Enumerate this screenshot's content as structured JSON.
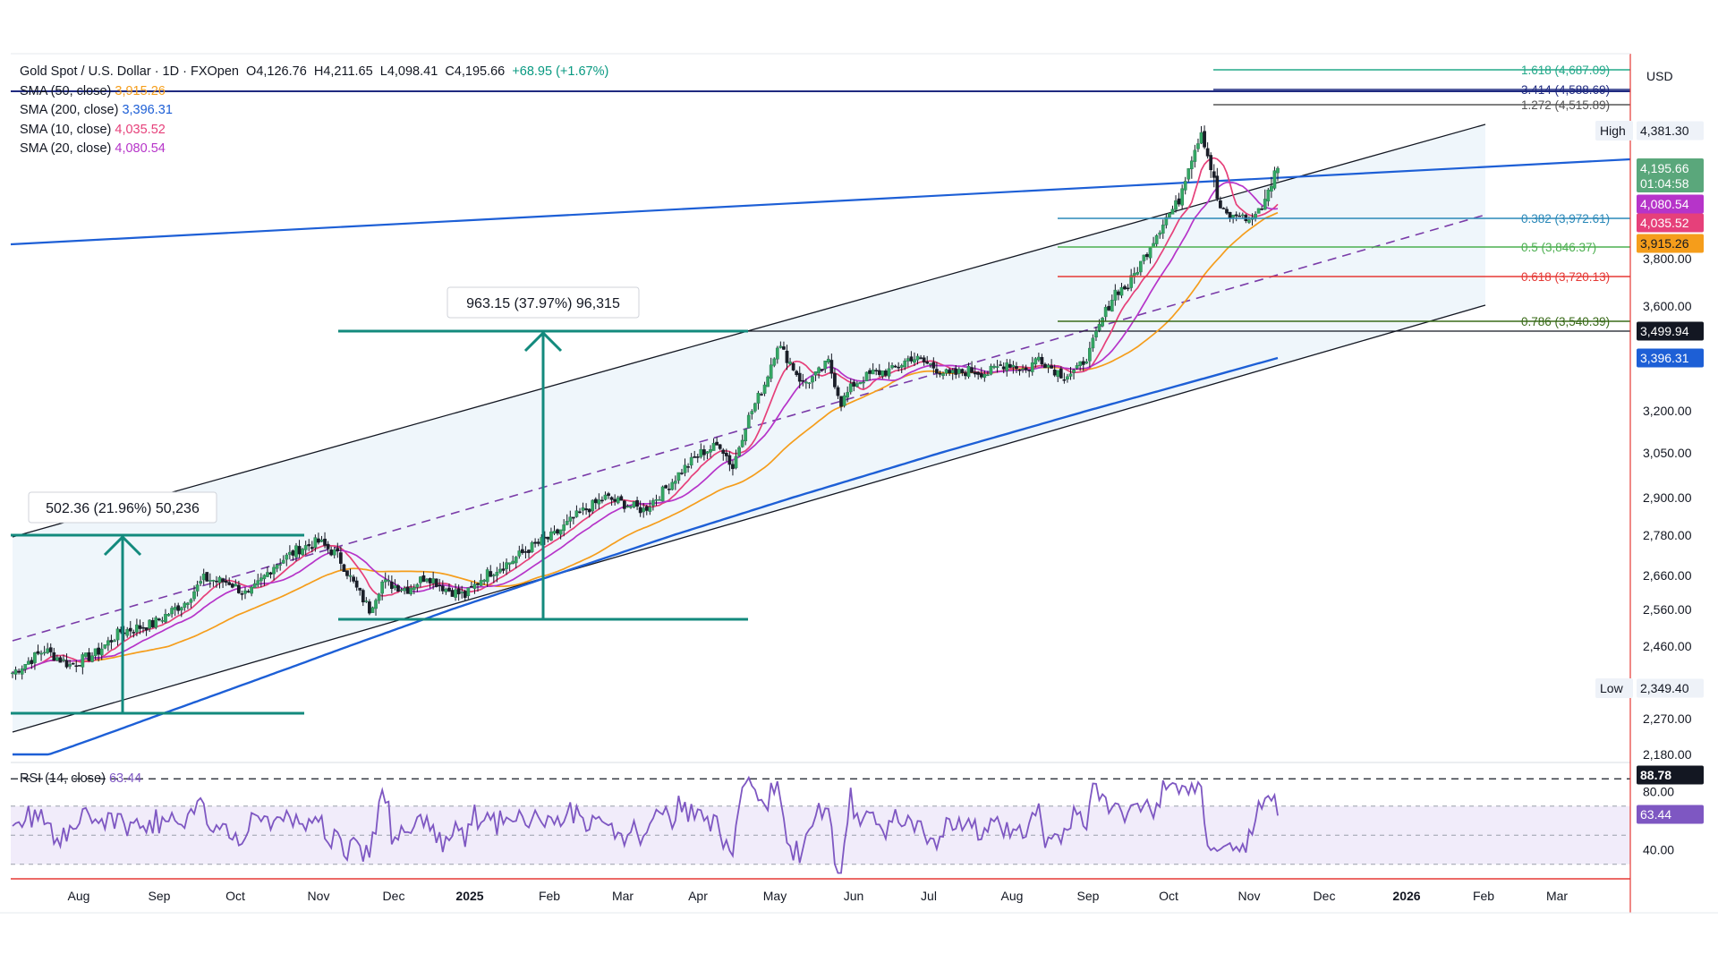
{
  "header": {
    "symbol": "Gold Spot / U.S. Dollar · 1D · FXOpen",
    "open": "O4,126.76",
    "high": "H4,211.65",
    "low": "L4,098.41",
    "close": "C4,195.66",
    "change": "+68.95 (+1.67%)"
  },
  "indicators": [
    {
      "label": "SMA (50, close)",
      "value": "3,915.26",
      "color": "#f59d1b"
    },
    {
      "label": "SMA (200, close)",
      "value": "3,396.31",
      "color": "#1d5fd6"
    },
    {
      "label": "SMA (10, close)",
      "value": "4,035.52",
      "color": "#e6407a"
    },
    {
      "label": "SMA (20, close)",
      "value": "4,080.54",
      "color": "#b634c9"
    }
  ],
  "rsi": {
    "label": "RSI (14, close)",
    "value": "63.44",
    "color": "#7e57c2"
  },
  "currency": "USD",
  "price_ticks": [
    "3,800.00",
    "3,600.00",
    "3,200.00",
    "3,050.00",
    "2,900.00",
    "2,780.00",
    "2,660.00",
    "2,560.00",
    "2,460.00",
    "2,270.00",
    "2,180.00"
  ],
  "rsi_ticks": [
    "40.00",
    "80.00"
  ],
  "price_tags": [
    {
      "text": "4,381.30",
      "kind": "high-label",
      "label": "High",
      "bg": "#eef2f8",
      "fg": "#131722"
    },
    {
      "text": "4,195.66",
      "kind": "last",
      "sub": "01:04:58",
      "bg": "#5aa77b",
      "fg": "#ffffff"
    },
    {
      "text": "4,080.54",
      "kind": "sma20",
      "bg": "#b634c9",
      "fg": "#ffffff"
    },
    {
      "text": "4,035.52",
      "kind": "sma10",
      "bg": "#e6407a",
      "fg": "#ffffff"
    },
    {
      "text": "3,915.26",
      "kind": "sma50",
      "bg": "#f59d1b",
      "fg": "#131722"
    },
    {
      "text": "3,499.94",
      "kind": "hline",
      "bg": "#131722",
      "fg": "#ffffff"
    },
    {
      "text": "3,396.31",
      "kind": "sma200",
      "bg": "#1d5fd6",
      "fg": "#ffffff"
    },
    {
      "text": "2,349.40",
      "kind": "low-label",
      "label": "Low",
      "bg": "#eef2f8",
      "fg": "#131722"
    },
    {
      "text": "88.78",
      "kind": "rsi-line",
      "bg": "#131722",
      "fg": "#ffffff"
    },
    {
      "text": "63.44",
      "kind": "rsi-value",
      "bg": "#7e57c2",
      "fg": "#ffffff"
    }
  ],
  "fib_levels": [
    {
      "label": "1.618 (4,687.09)",
      "color": "#22a889"
    },
    {
      "label": "3.414 (4,588.69)",
      "color": "#1f2a80"
    },
    {
      "label": "1.272 (4,515.89)",
      "color": "#555555"
    },
    {
      "label": "0.382 (3,972.61)",
      "color": "#2a88b8"
    },
    {
      "label": "0.5 (3,846.37)",
      "color": "#4caf50"
    },
    {
      "label": "0.618 (3,720.13)",
      "color": "#e53935"
    },
    {
      "label": "0.786 (3,540.39)",
      "color": "#3a6b1a"
    }
  ],
  "measures": [
    {
      "label": "963.15 (37.97%) 96,315",
      "color": "#138a7d"
    },
    {
      "label": "502.36 (21.96%) 50,236",
      "color": "#138a7d"
    }
  ],
  "time_labels": [
    "Aug",
    "Sep",
    "Oct",
    "Nov",
    "Dec",
    "2025",
    "Feb",
    "Mar",
    "Apr",
    "May",
    "Jun",
    "Jul",
    "Aug",
    "Sep",
    "Oct",
    "Nov",
    "Dec",
    "2026",
    "Feb",
    "Mar"
  ],
  "chart_data": {
    "type": "candlestick",
    "title": "Gold Spot / U.S. Dollar · 1D · FXOpen",
    "ylabel": "USD",
    "ylim": [
      2130,
      4750
    ],
    "x_range_label": [
      "Jul 2024",
      "Mar 2026"
    ],
    "key_points_price": [
      {
        "date": "Aug 2024",
        "value": 2400
      },
      {
        "date": "Oct 2024",
        "value": 2660
      },
      {
        "date": "Nov 2024",
        "value": 2540
      },
      {
        "date": "Dec 2024",
        "value": 2640
      },
      {
        "date": "Feb 2025",
        "value": 2900
      },
      {
        "date": "Apr 2025",
        "value": 3500
      },
      {
        "date": "May 2025",
        "value": 3300
      },
      {
        "date": "Aug 2025",
        "value": 3350
      },
      {
        "date": "Oct 2025",
        "value": 4381.3
      },
      {
        "date": "Nov 2025",
        "value": 4000
      },
      {
        "date": "Nov 2025 (last)",
        "value": 4195.66
      }
    ],
    "series": [
      {
        "name": "SMA (50, close)",
        "last": 3915.26
      },
      {
        "name": "SMA (200, close)",
        "last": 3396.31
      },
      {
        "name": "SMA (10, close)",
        "last": 4035.52
      },
      {
        "name": "SMA (20, close)",
        "last": 4080.54
      },
      {
        "name": "RSI (14, close)",
        "last": 63.44
      }
    ],
    "high": 4381.3,
    "low": 2349.4,
    "horizontal_line": 3499.94,
    "rsi_levels": [
      88.78,
      70,
      50,
      30
    ],
    "rsi_ylim": [
      20,
      100
    ]
  }
}
